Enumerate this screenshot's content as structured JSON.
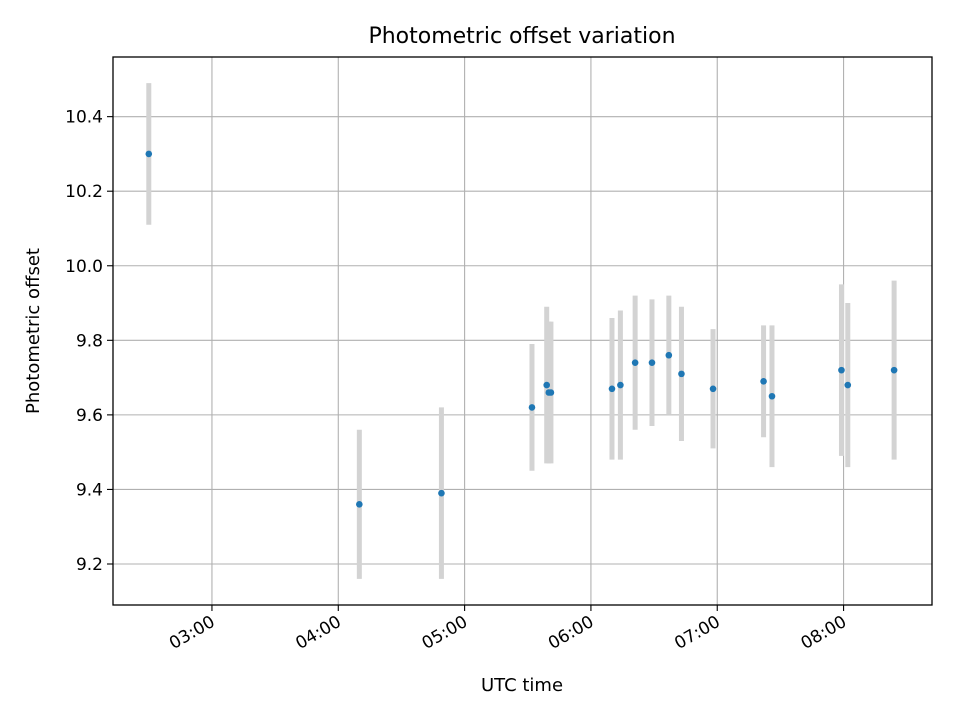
{
  "chart_data": {
    "type": "scatter",
    "title": "Photometric offset variation",
    "xlabel": "UTC time",
    "ylabel": "Photometric offset",
    "x_ticks": [
      "03:00",
      "04:00",
      "05:00",
      "06:00",
      "07:00",
      "08:00"
    ],
    "y_ticks": [
      "9.2",
      "9.4",
      "9.6",
      "9.8",
      "10.0",
      "10.2",
      "10.4"
    ],
    "xlim": [
      "02:13",
      "08:42"
    ],
    "ylim": [
      9.09,
      10.56
    ],
    "grid": true,
    "colors": {
      "point": "#1f77b4",
      "errorbar": "#d3d3d3",
      "grid": "#b0b0b0"
    },
    "points": [
      {
        "x": "02:30",
        "y": 10.3,
        "err": 0.19
      },
      {
        "x": "04:10",
        "y": 9.36,
        "err": 0.2
      },
      {
        "x": "04:49",
        "y": 9.39,
        "err": 0.23
      },
      {
        "x": "05:32",
        "y": 9.62,
        "err": 0.17
      },
      {
        "x": "05:39",
        "y": 9.68,
        "err": 0.21
      },
      {
        "x": "05:40",
        "y": 9.66,
        "err": 0.19
      },
      {
        "x": "05:41",
        "y": 9.66,
        "err": 0.19
      },
      {
        "x": "06:10",
        "y": 9.67,
        "err": 0.19
      },
      {
        "x": "06:14",
        "y": 9.68,
        "err": 0.2
      },
      {
        "x": "06:21",
        "y": 9.74,
        "err": 0.18
      },
      {
        "x": "06:29",
        "y": 9.74,
        "err": 0.17
      },
      {
        "x": "06:37",
        "y": 9.76,
        "err": 0.16
      },
      {
        "x": "06:43",
        "y": 9.71,
        "err": 0.18
      },
      {
        "x": "06:58",
        "y": 9.67,
        "err": 0.16
      },
      {
        "x": "07:22",
        "y": 9.69,
        "err": 0.15
      },
      {
        "x": "07:26",
        "y": 9.65,
        "err": 0.19
      },
      {
        "x": "07:59",
        "y": 9.72,
        "err": 0.23
      },
      {
        "x": "08:02",
        "y": 9.68,
        "err": 0.22
      },
      {
        "x": "08:24",
        "y": 9.72,
        "err": 0.24
      }
    ]
  }
}
